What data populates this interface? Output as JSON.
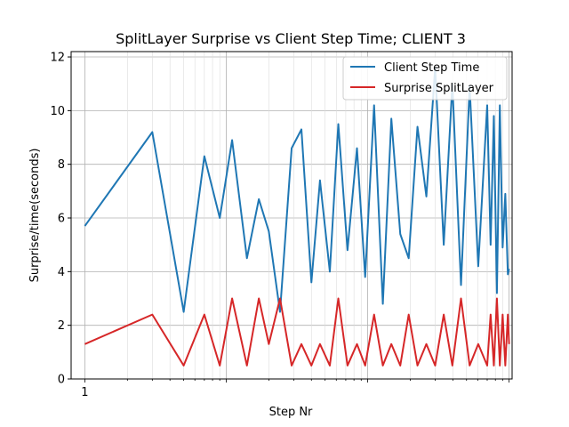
{
  "chart_data": {
    "type": "line",
    "title": "SplitLayer Surprise vs Client Step Time; CLIENT 3",
    "xlabel": "Step Nr",
    "ylabel": "Surprise/time(seconds)",
    "x_scale": "log",
    "xlim": [
      0.8,
      1050
    ],
    "ylim": [
      0,
      12.2
    ],
    "y_ticks": [
      0,
      2,
      4,
      6,
      8,
      10,
      12
    ],
    "x_ticks": [
      1
    ],
    "grid": true,
    "legend_position": "top-right",
    "series": [
      {
        "name": "Client Step Time",
        "color": "#1f77b4",
        "x": [
          1,
          3,
          5,
          7,
          9,
          11,
          14,
          17,
          20,
          24,
          29,
          34,
          40,
          46,
          54,
          62,
          72,
          84,
          96,
          111,
          128,
          147,
          170,
          195,
          225,
          260,
          300,
          345,
          397,
          457,
          526,
          605,
          700,
          740,
          780,
          820,
          860,
          900,
          940,
          980,
          1000
        ],
        "y": [
          5.7,
          9.2,
          2.5,
          8.3,
          6.0,
          8.9,
          4.5,
          6.7,
          5.5,
          2.5,
          8.6,
          9.3,
          3.6,
          7.4,
          4.0,
          9.5,
          4.8,
          8.6,
          3.8,
          10.2,
          2.8,
          9.7,
          5.4,
          4.5,
          9.4,
          6.8,
          11.6,
          5.0,
          11.0,
          3.5,
          10.9,
          4.2,
          10.2,
          5.0,
          9.8,
          3.2,
          10.2,
          4.9,
          6.9,
          3.9,
          4.1
        ]
      },
      {
        "name": "Surprise SplitLayer",
        "color": "#d62728",
        "x": [
          1,
          3,
          5,
          7,
          9,
          11,
          14,
          17,
          20,
          24,
          29,
          34,
          40,
          46,
          54,
          62,
          72,
          84,
          96,
          111,
          128,
          147,
          170,
          195,
          225,
          260,
          300,
          345,
          397,
          457,
          526,
          605,
          700,
          740,
          780,
          820,
          860,
          900,
          940,
          980,
          1000
        ],
        "y": [
          1.3,
          2.4,
          0.5,
          2.4,
          0.5,
          3.0,
          0.5,
          3.0,
          1.3,
          3.0,
          0.5,
          1.3,
          0.5,
          1.3,
          0.5,
          3.0,
          0.5,
          1.3,
          0.5,
          2.4,
          0.5,
          1.3,
          0.5,
          2.4,
          0.5,
          1.3,
          0.5,
          2.4,
          0.5,
          3.0,
          0.5,
          1.3,
          0.5,
          2.4,
          0.5,
          3.0,
          0.5,
          2.4,
          0.5,
          2.4,
          1.3
        ]
      }
    ]
  }
}
